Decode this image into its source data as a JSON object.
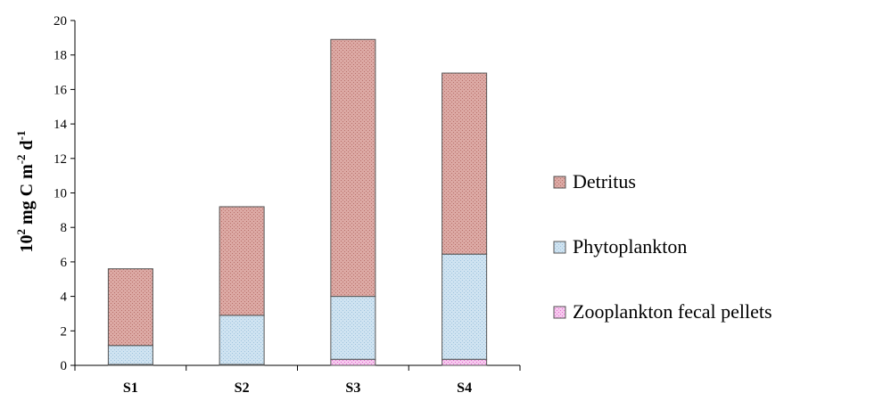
{
  "chart_data": {
    "type": "bar",
    "stacked": true,
    "categories": [
      "S1",
      "S2",
      "S3",
      "S4"
    ],
    "series": [
      {
        "name": "Zooplankton fecal pellets",
        "values": [
          0.05,
          0.05,
          0.35,
          0.35
        ],
        "color": "#f7c8ee",
        "pattern_color": "#e070d0"
      },
      {
        "name": "Phytoplankton",
        "values": [
          1.1,
          2.85,
          3.65,
          6.1
        ],
        "color": "#cfe3f1",
        "pattern_color": "#9fc3dd"
      },
      {
        "name": "Detritus",
        "values": [
          4.45,
          6.3,
          14.9,
          10.5
        ],
        "color": "#dca9a4",
        "pattern_color": "#b8706b"
      }
    ],
    "legend_order": [
      "Detritus",
      "Phytoplankton",
      "Zooplankton fecal pellets"
    ],
    "ylim": [
      0,
      20
    ],
    "ytick_step": 2,
    "yticks": [
      "0",
      "2",
      "4",
      "6",
      "8",
      "10",
      "12",
      "14",
      "16",
      "18",
      "20"
    ],
    "xlabel": "",
    "ylabel": {
      "base": "10",
      "base_sup": "2",
      "unit_a": " mg C m",
      "unit_a_sup": "-2",
      "unit_b": " d",
      "unit_b_sup": "-1"
    },
    "grid": false,
    "legend_position": "right"
  }
}
